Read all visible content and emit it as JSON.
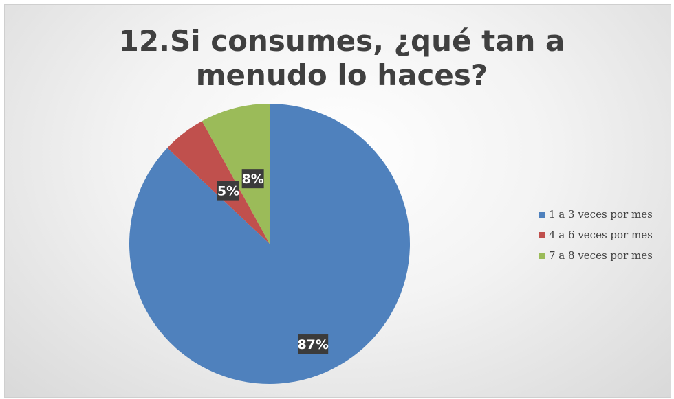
{
  "chart_data": {
    "type": "pie",
    "title": "12.Si consumes, ¿qué tan a menudo lo haces?",
    "categories": [
      "1 a 3 veces por mes",
      "4 a 6 veces por mes",
      "7 a 8 veces por mes"
    ],
    "values": [
      87,
      5,
      8
    ],
    "labels": [
      "87%",
      "5%",
      "8%"
    ],
    "colors": [
      "#4f81bd",
      "#c0504d",
      "#9bbb59"
    ],
    "legend_position": "right"
  },
  "colors": {
    "label_bg": "#3b3b3b"
  }
}
